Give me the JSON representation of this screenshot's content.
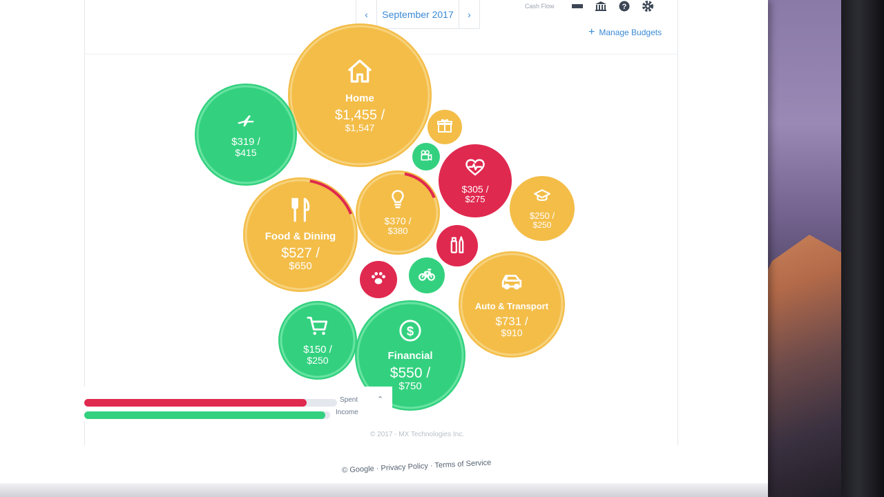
{
  "colors": {
    "green": "#33d17f",
    "yellow": "#f3bd48",
    "red": "#e0294f",
    "link_blue": "#3a8ad6"
  },
  "header": {
    "prev_label": "‹",
    "month": "September 2017",
    "next_label": "›",
    "cash_flow": "Cash Flow",
    "manage_budgets": "Manage Budgets"
  },
  "budgets": [
    {
      "name": "Home",
      "icon": "home-icon",
      "spent": "$1,455 /",
      "budget": "$1,547",
      "status": "yellow"
    },
    {
      "name": "",
      "icon": "airplane-icon",
      "spent": "$319 /",
      "budget": "$415",
      "status": "green"
    },
    {
      "name": "",
      "icon": "gift-icon",
      "spent": "",
      "budget": "",
      "status": "yellow"
    },
    {
      "name": "",
      "icon": "projector-icon",
      "spent": "",
      "budget": "",
      "status": "green"
    },
    {
      "name": "",
      "icon": "heartbeat-icon",
      "spent": "$305 /",
      "budget": "$275",
      "status": "red"
    },
    {
      "name": "",
      "icon": "graduation-cap-icon",
      "spent": "$250 /",
      "budget": "$250",
      "status": "yellow"
    },
    {
      "name": "Food & Dining",
      "icon": "fork-knife-icon",
      "spent": "$527 /",
      "budget": "$650",
      "status": "yellow"
    },
    {
      "name": "",
      "icon": "lightbulb-icon",
      "spent": "$370 /",
      "budget": "$380",
      "status": "yellow"
    },
    {
      "name": "",
      "icon": "toiletries-icon",
      "spent": "",
      "budget": "",
      "status": "red"
    },
    {
      "name": "",
      "icon": "paw-icon",
      "spent": "",
      "budget": "",
      "status": "red"
    },
    {
      "name": "",
      "icon": "bicycle-icon",
      "spent": "",
      "budget": "",
      "status": "green"
    },
    {
      "name": "Auto & Transport",
      "icon": "car-icon",
      "spent": "$731 /",
      "budget": "$910",
      "status": "yellow"
    },
    {
      "name": "",
      "icon": "shopping-cart-icon",
      "spent": "$150 /",
      "budget": "$250",
      "status": "green"
    },
    {
      "name": "Financial",
      "icon": "dollar-icon",
      "spent": "$550 /",
      "budget": "$750",
      "status": "green"
    }
  ],
  "summary": {
    "spent_label": "Spent",
    "income_label": "Income",
    "spent_fraction": 0.88,
    "income_fraction": 0.98
  },
  "footer": {
    "copyright": "© 2017 - MX Technologies Inc.",
    "google": "© Google",
    "privacy": "Privacy Policy",
    "terms": "Terms of Service"
  }
}
